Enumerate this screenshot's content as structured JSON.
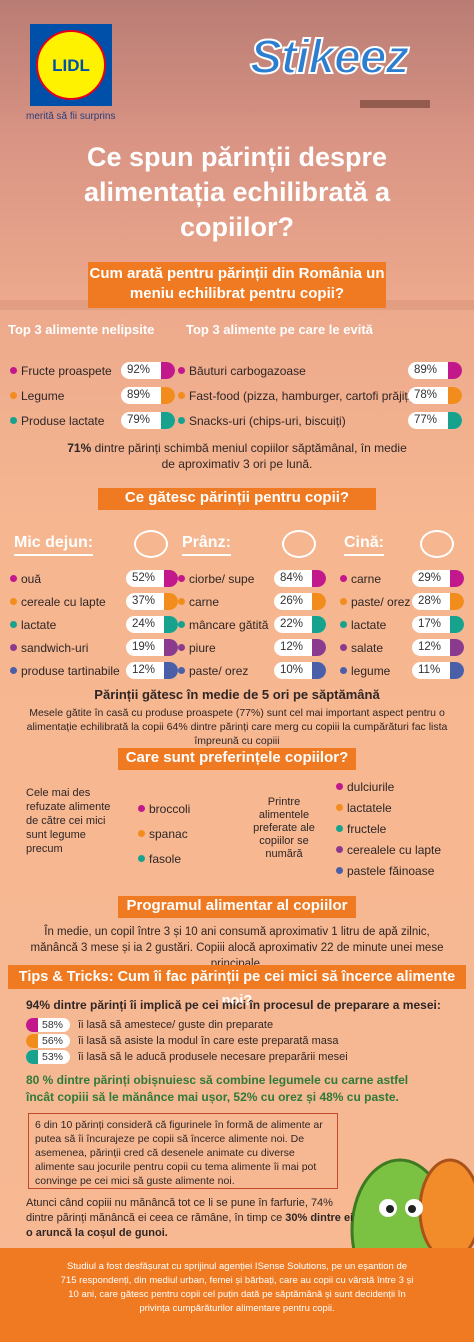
{
  "header": {
    "logo": "LIDL",
    "tagline": "merită să fii surprins",
    "brand": "Stikeez"
  },
  "title": "Ce spun părinții despre alimentația echilibrată a copiilor?",
  "menu": {
    "heading": "Cum arată pentru părinții din România un meniu echilibrat pentru copii?",
    "essential": {
      "title": "Top 3 alimente nelipsite",
      "items": [
        {
          "label": "Fructe proaspete",
          "percent": "92%"
        },
        {
          "label": "Legume",
          "percent": "89%"
        },
        {
          "label": "Produse lactate",
          "percent": "79%"
        }
      ]
    },
    "avoided": {
      "title": "Top 3 alimente pe care le evită",
      "items": [
        {
          "label": "Băuturi carbogazoase",
          "percent": "89%"
        },
        {
          "label": "Fast-food (pizza, hamburger, cartofi prăjiți)",
          "percent": "78%"
        },
        {
          "label": "Snacks-uri (chips-uri, biscuiți)",
          "percent": "77%"
        }
      ]
    },
    "note": {
      "bold": "71%",
      "text": "dintre părinți schimbă meniul copiilor săptămânal, în medie de aproximativ 3 ori pe lună."
    }
  },
  "cooking": {
    "heading": "Ce gătesc părinții pentru copii?",
    "meals": [
      {
        "title": "Mic dejun:",
        "items": [
          {
            "label": "ouă",
            "percent": "52%"
          },
          {
            "label": "cereale cu lapte",
            "percent": "37%"
          },
          {
            "label": "lactate",
            "percent": "24%"
          },
          {
            "label": "sandwich-uri",
            "percent": "19%"
          },
          {
            "label": "produse tartinabile",
            "percent": "12%"
          }
        ]
      },
      {
        "title": "Prânz:",
        "items": [
          {
            "label": "ciorbe/ supe",
            "percent": "84%"
          },
          {
            "label": "carne",
            "percent": "26%"
          },
          {
            "label": "mâncare gătită",
            "percent": "22%"
          },
          {
            "label": "piure",
            "percent": "12%"
          },
          {
            "label": "paste/ orez",
            "percent": "10%"
          }
        ]
      },
      {
        "title": "Cină:",
        "items": [
          {
            "label": "carne",
            "percent": "29%"
          },
          {
            "label": "paste/ orez",
            "percent": "28%"
          },
          {
            "label": "lactate",
            "percent": "17%"
          },
          {
            "label": "salate",
            "percent": "12%"
          },
          {
            "label": "legume",
            "percent": "11%"
          }
        ]
      }
    ],
    "frequency": "Părinții gătesc în medie de 5 ori pe săptămână",
    "paragraph": "Mesele gătite în casă cu produse proaspete (77%) sunt cel mai important aspect pentru o alimentație echilibrată la copii 64% dintre părinți care merg cu copiii la cumpărături fac lista împreună cu copiii"
  },
  "preferences": {
    "heading": "Care sunt preferințele copiilor?",
    "refused": {
      "intro": "Cele mai des refuzate alimente de către cei mici sunt legume precum",
      "items": [
        "broccoli",
        "spanac",
        "fasole"
      ]
    },
    "liked": {
      "intro": "Printre alimentele preferate ale copiilor se numără",
      "items": [
        "dulciurile",
        "lactatele",
        "fructele",
        "cerealele cu lapte",
        "pastele făinoase"
      ]
    }
  },
  "schedule": {
    "heading": "Programul alimentar al copiilor",
    "text": "În medie, un copil între 3 și 10 ani consumă aproximativ 1 litru de apă zilnic, mănâncă 3 mese și ia 2 gustări. Copiii alocă aproximativ 22 de minute unei mese principale."
  },
  "tips": {
    "heading": "Tips & Tricks: Cum îi fac părinții pe cei mici să încerce alimente noi?",
    "intro": "94% dintre părinți îi implică pe cei mici în procesul de preparare a mesei:",
    "items": [
      {
        "percent": "58%",
        "label": "îi lasă să amestece/ guste din preparate"
      },
      {
        "percent": "56%",
        "label": "îi lasă să asiste la modul în care este preparată masa"
      },
      {
        "percent": "53%",
        "label": "îi lasă să le aducă produsele necesare preparării mesei"
      }
    ],
    "combine": "80 % dintre părinți obișnuiesc să combine legumele cu carne astfel încât copiii să le mănânce mai ușor, 52% cu orez și 48% cu paste.",
    "box": "6 din 10 părinți consideră că figurinele în formă de alimente ar putea să îi încurajeze pe copii să încerce alimente noi. De asemenea, părinții cred că desenele animate cu diverse alimente sau jocurile pentru copii cu tema alimente îi mai pot convinge pe cei mici să guste alimente noi.",
    "leftovers": {
      "text": "Atunci când copiii nu mănâncă tot ce li se pune în farfurie, 74% dintre părinți mănâncă ei ceea ce rămâne, în timp ce",
      "bold": "30% dintre ei o aruncă la coșul de gunoi."
    }
  },
  "footer": "Studiul a fost desfășurat cu sprijinul agenției ISense Solutions, pe un eșantion de 715 respondenți, din mediul urban, femei și bărbați, care au copii cu vârstă între 3 și 10 ani, care gătesc pentru copii cel puțin dată pe săptămână și sunt decidenții în privința cumpărăturilor alimentare pentru copii."
}
